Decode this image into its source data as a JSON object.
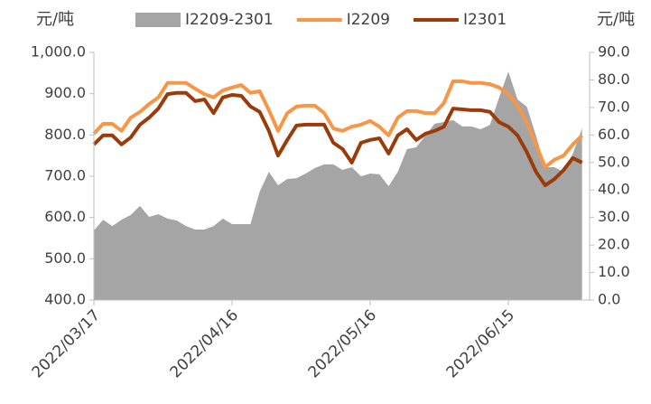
{
  "chart_data": {
    "type": "line",
    "y_label": "元/吨",
    "y2_label": "元/吨",
    "categories": [
      "2022/03/17",
      null,
      null,
      null,
      null,
      null,
      null,
      null,
      null,
      null,
      null,
      null,
      null,
      null,
      null,
      "2022/04/16",
      null,
      null,
      null,
      null,
      null,
      null,
      null,
      null,
      null,
      null,
      null,
      null,
      null,
      null,
      "2022/05/16",
      null,
      null,
      null,
      null,
      null,
      null,
      null,
      null,
      null,
      null,
      null,
      null,
      null,
      null,
      "2022/06/15",
      null,
      null,
      null,
      null,
      null,
      null,
      null,
      null
    ],
    "series": [
      {
        "name": "I2209-2301",
        "type": "area",
        "axis": "y2",
        "color": "#a5a5a5",
        "values": [
          25.3,
          29.2,
          26.9,
          29.2,
          30.9,
          34.2,
          30.2,
          31.2,
          29.6,
          28.9,
          26.9,
          25.6,
          25.6,
          26.9,
          29.6,
          27.6,
          27.6,
          27.6,
          39.4,
          46.6,
          41.7,
          44.0,
          44.3,
          46.0,
          48.0,
          49.3,
          49.3,
          47.3,
          48.3,
          45.0,
          46.0,
          45.7,
          41.4,
          46.6,
          54.9,
          55.5,
          59.8,
          64.1,
          64.7,
          65.4,
          63.1,
          63.1,
          62.1,
          63.7,
          73.6,
          83.0,
          72.9,
          70.3,
          59.8,
          48.3,
          48.3,
          46.6,
          53.2,
          62.4
        ]
      },
      {
        "name": "I2209",
        "type": "line",
        "color": "#f79646",
        "values": [
          803,
          827,
          827,
          810,
          842,
          856,
          875,
          891,
          926,
          926,
          926,
          912,
          899,
          891,
          908,
          915,
          921,
          902,
          906,
          860,
          810,
          853,
          869,
          871,
          871,
          853,
          816,
          810,
          820,
          825,
          834,
          820,
          799,
          842,
          858,
          858,
          853,
          853,
          877,
          930,
          930,
          926,
          926,
          923,
          915,
          899,
          871,
          831,
          777,
          722,
          740,
          750,
          777,
          799
        ]
      },
      {
        "name": "I2301",
        "type": "line",
        "color": "#9c3b0a",
        "values": [
          777,
          799,
          799,
          777,
          794,
          825,
          842,
          864,
          899,
          902,
          902,
          882,
          886,
          853,
          891,
          897,
          895,
          869,
          856,
          810,
          750,
          788,
          823,
          825,
          825,
          825,
          781,
          766,
          733,
          781,
          788,
          792,
          755,
          799,
          814,
          788,
          803,
          810,
          820,
          864,
          862,
          860,
          860,
          856,
          831,
          820,
          799,
          759,
          711,
          678,
          693,
          715,
          744,
          733
        ]
      }
    ],
    "ylim": [
      400,
      1000
    ],
    "yticks": [
      {
        "value": 400,
        "label": "400.0"
      },
      {
        "value": 500,
        "label": "500.0"
      },
      {
        "value": 600,
        "label": "600.0"
      },
      {
        "value": 700,
        "label": "700.0"
      },
      {
        "value": 800,
        "label": "800.0"
      },
      {
        "value": 900,
        "label": "900.0"
      },
      {
        "value": 1000,
        "label": "1,000.0"
      }
    ],
    "y2lim": [
      0,
      90
    ],
    "y2ticks": [
      {
        "value": 0,
        "label": "0.0"
      },
      {
        "value": 10,
        "label": "10.0"
      },
      {
        "value": 20,
        "label": "20.0"
      },
      {
        "value": 30,
        "label": "30.0"
      },
      {
        "value": 40,
        "label": "40.0"
      },
      {
        "value": 50,
        "label": "50.0"
      },
      {
        "value": 60,
        "label": "60.0"
      },
      {
        "value": 70,
        "label": "70.0"
      },
      {
        "value": 80,
        "label": "80.0"
      },
      {
        "value": 90,
        "label": "90.0"
      }
    ],
    "legend": "top"
  }
}
